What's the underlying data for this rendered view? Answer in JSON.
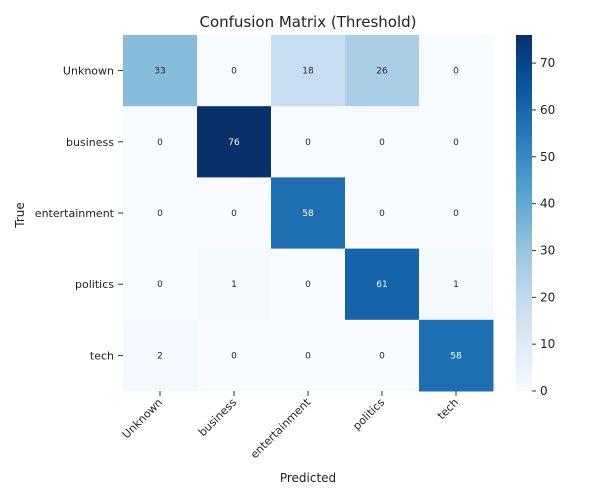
{
  "chart_data": {
    "type": "heatmap",
    "title": "Confusion Matrix (Threshold)",
    "xlabel": "Predicted",
    "ylabel": "True",
    "x_categories": [
      "Unknown",
      "business",
      "entertainment",
      "politics",
      "tech"
    ],
    "y_categories": [
      "Unknown",
      "business",
      "entertainment",
      "politics",
      "tech"
    ],
    "matrix": [
      [
        33,
        0,
        18,
        26,
        0
      ],
      [
        0,
        76,
        0,
        0,
        0
      ],
      [
        0,
        0,
        58,
        0,
        0
      ],
      [
        0,
        1,
        0,
        61,
        1
      ],
      [
        2,
        0,
        0,
        0,
        58
      ]
    ],
    "colormap": "Blues",
    "vmin": 0,
    "vmax": 76,
    "colorbar_ticks": [
      0,
      10,
      20,
      30,
      40,
      50,
      60,
      70
    ]
  }
}
